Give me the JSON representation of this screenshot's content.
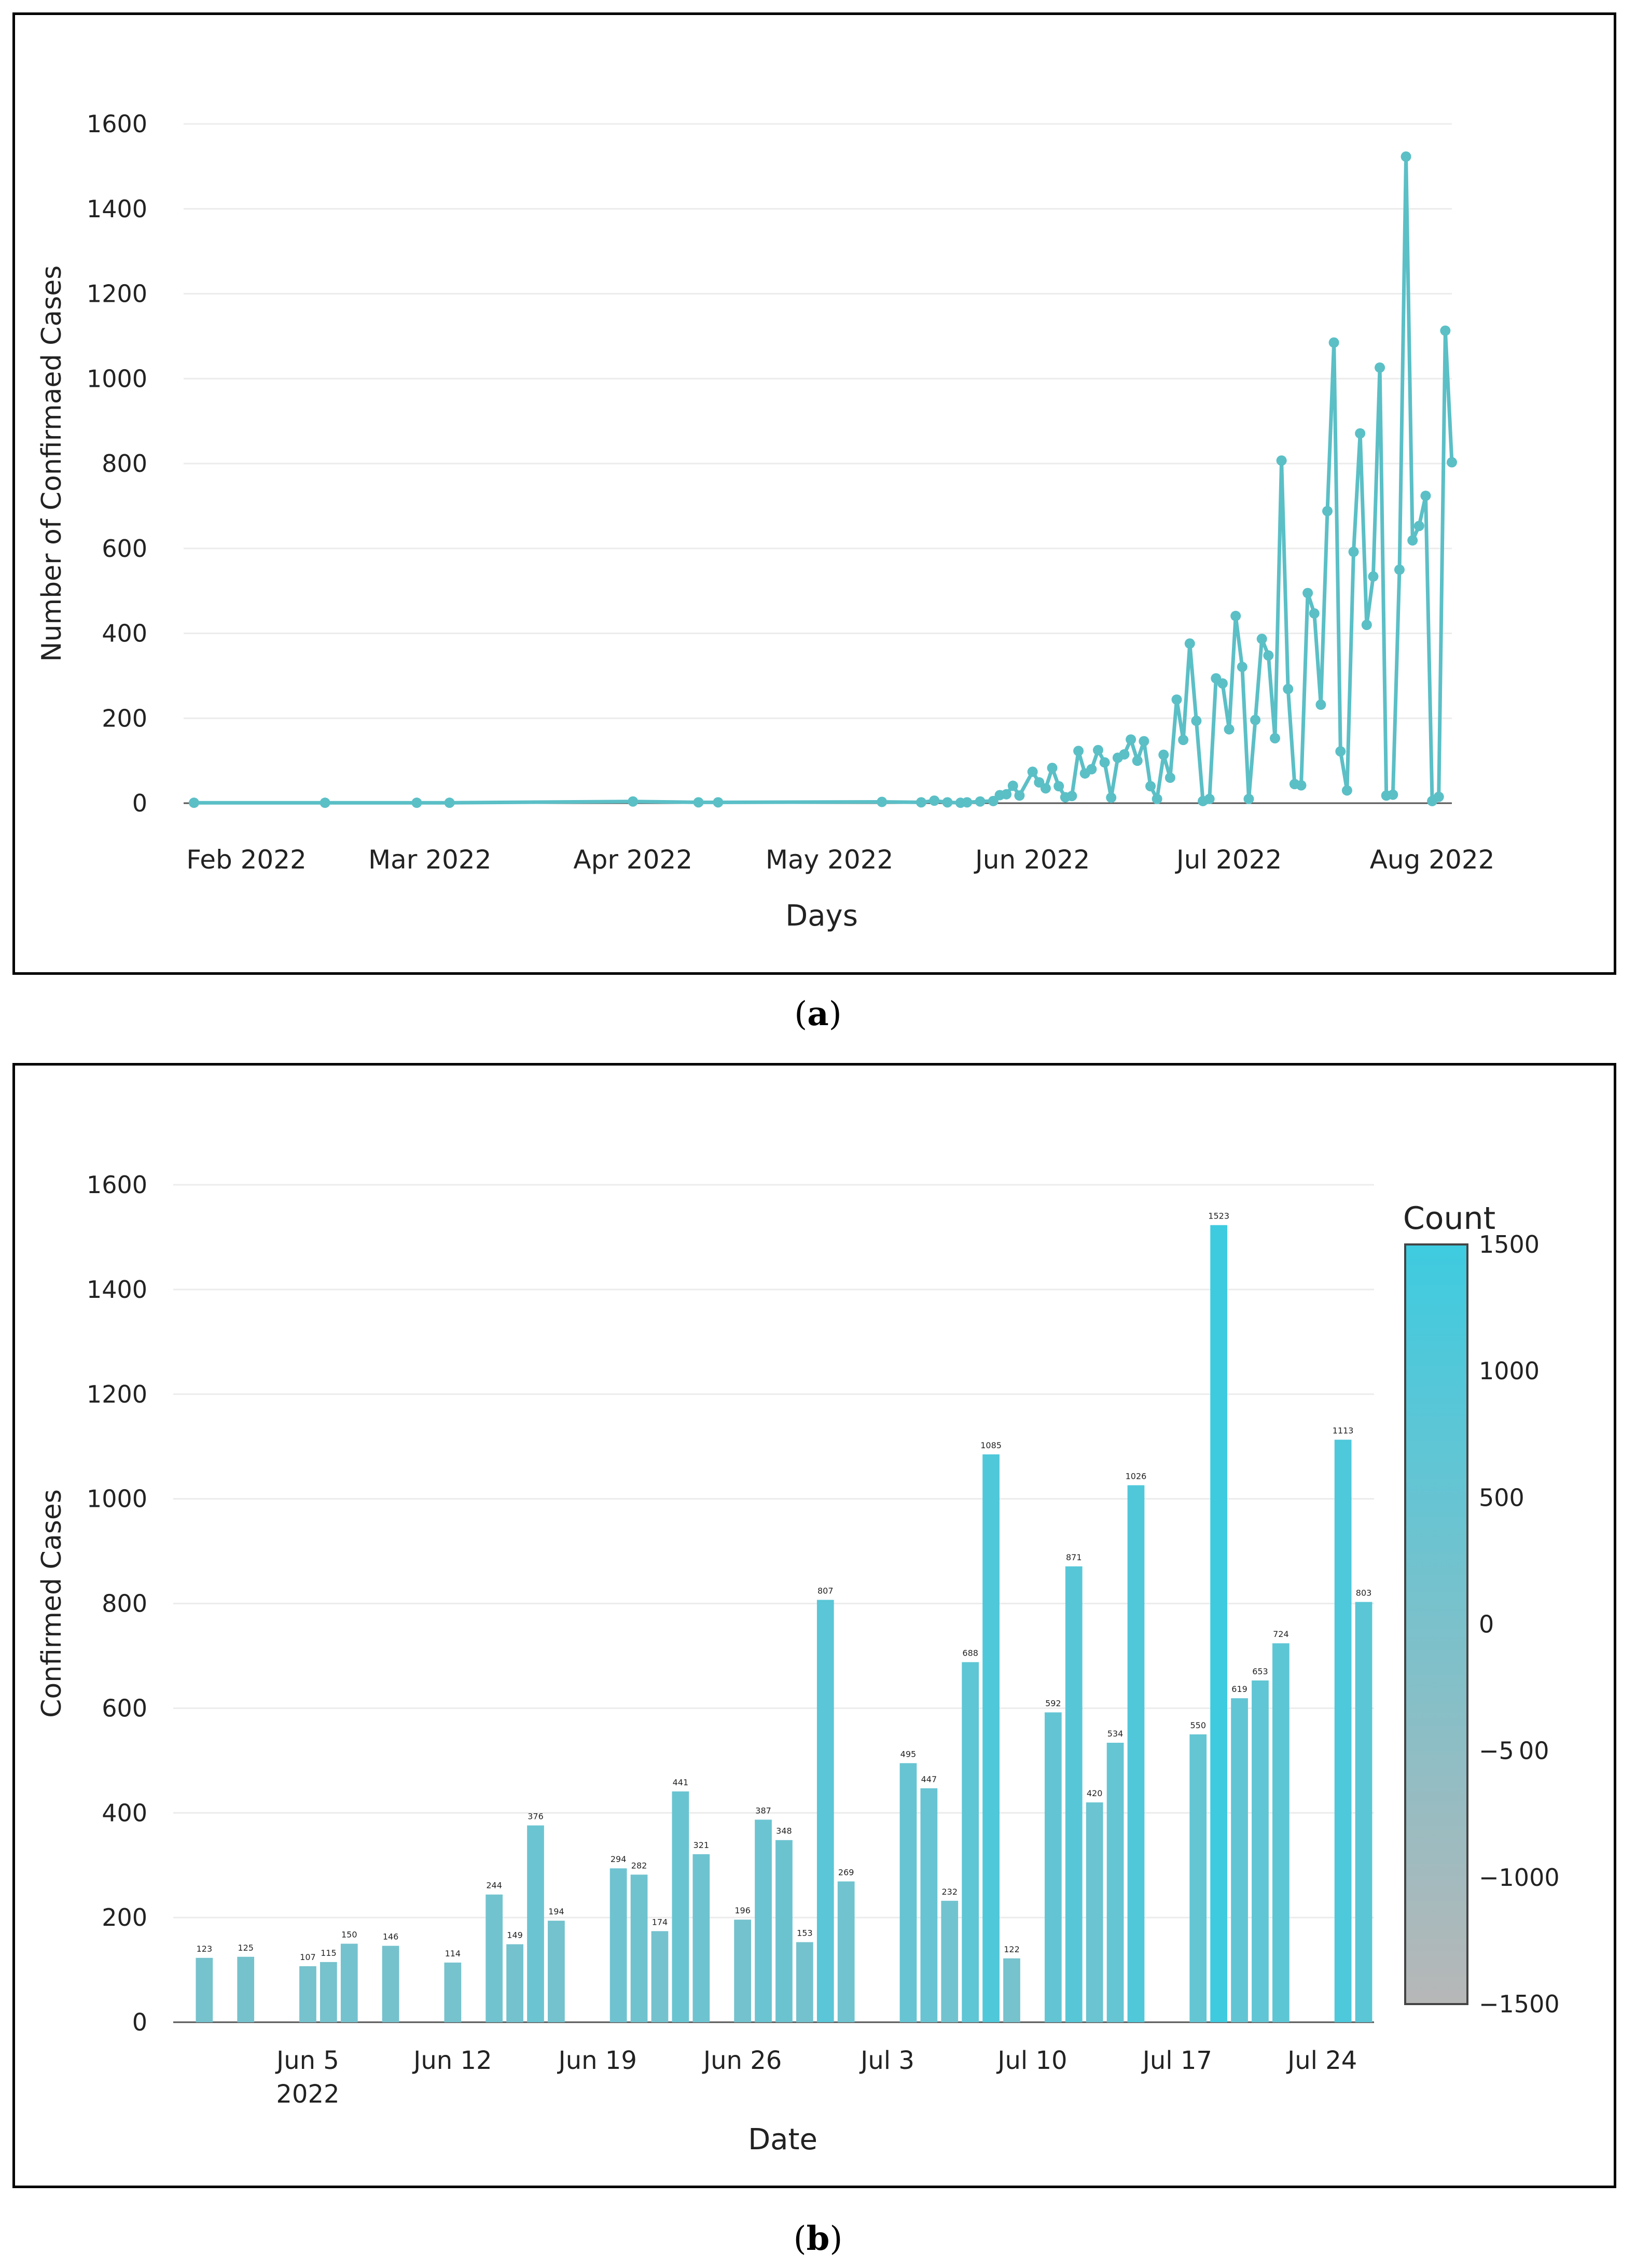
{
  "captions": {
    "a": {
      "open": "(",
      "letter": "a",
      "close": ")"
    },
    "b": {
      "open": "(",
      "letter": "b",
      "close": ")"
    }
  },
  "chart_data": [
    {
      "id": "a",
      "type": "line",
      "title": "",
      "xlabel": "Days",
      "ylabel": "Number of Confirmaed Cases",
      "ylim": [
        0,
        1600
      ],
      "yticks": [
        0,
        200,
        400,
        600,
        800,
        1000,
        1200,
        1400,
        1600
      ],
      "xlim": [
        "2022-01-24",
        "2022-08-04"
      ],
      "xticks": [
        {
          "date": "2022-02-01",
          "label": "Feb 2022"
        },
        {
          "date": "2022-03-01",
          "label": "Mar 2022"
        },
        {
          "date": "2022-04-01",
          "label": "Apr 2022"
        },
        {
          "date": "2022-05-01",
          "label": "May 2022"
        },
        {
          "date": "2022-06-01",
          "label": "Jun 2022"
        },
        {
          "date": "2022-07-01",
          "label": "Jul 2022"
        },
        {
          "date": "2022-08-01",
          "label": "Aug 2022"
        }
      ],
      "grid": true,
      "color": "#5bbfc6",
      "series": [
        {
          "points": [
            [
              "2022-01-24",
              1
            ],
            [
              "2022-02-13",
              1
            ],
            [
              "2022-02-27",
              1
            ],
            [
              "2022-03-04",
              1
            ],
            [
              "2022-04-01",
              4
            ],
            [
              "2022-04-11",
              2
            ],
            [
              "2022-04-14",
              2
            ],
            [
              "2022-05-09",
              3
            ],
            [
              "2022-05-15",
              2
            ],
            [
              "2022-05-17",
              6
            ],
            [
              "2022-05-19",
              2
            ],
            [
              "2022-05-21",
              1
            ],
            [
              "2022-05-22",
              2
            ],
            [
              "2022-05-24",
              4
            ],
            [
              "2022-05-26",
              5
            ],
            [
              "2022-05-27",
              19
            ],
            [
              "2022-05-28",
              21
            ],
            [
              "2022-05-29",
              41
            ],
            [
              "2022-05-30",
              18
            ],
            [
              "2022-06-01",
              74
            ],
            [
              "2022-06-02",
              49
            ],
            [
              "2022-06-03",
              35
            ],
            [
              "2022-06-04",
              83
            ],
            [
              "2022-06-05",
              40
            ],
            [
              "2022-06-06",
              14
            ],
            [
              "2022-06-07",
              17
            ],
            [
              "2022-06-08",
              123
            ],
            [
              "2022-06-09",
              70
            ],
            [
              "2022-06-10",
              80
            ],
            [
              "2022-06-11",
              125
            ],
            [
              "2022-06-12",
              96
            ],
            [
              "2022-06-13",
              13
            ],
            [
              "2022-06-14",
              107
            ],
            [
              "2022-06-15",
              115
            ],
            [
              "2022-06-16",
              150
            ],
            [
              "2022-06-17",
              100
            ],
            [
              "2022-06-18",
              146
            ],
            [
              "2022-06-19",
              40
            ],
            [
              "2022-06-20",
              10
            ],
            [
              "2022-06-21",
              114
            ],
            [
              "2022-06-22",
              60
            ],
            [
              "2022-06-23",
              244
            ],
            [
              "2022-06-24",
              149
            ],
            [
              "2022-06-25",
              376
            ],
            [
              "2022-06-26",
              194
            ],
            [
              "2022-06-27",
              5
            ],
            [
              "2022-06-28",
              10
            ],
            [
              "2022-06-29",
              294
            ],
            [
              "2022-06-30",
              282
            ],
            [
              "2022-07-01",
              174
            ],
            [
              "2022-07-02",
              441
            ],
            [
              "2022-07-03",
              321
            ],
            [
              "2022-07-04",
              10
            ],
            [
              "2022-07-05",
              196
            ],
            [
              "2022-07-06",
              387
            ],
            [
              "2022-07-07",
              348
            ],
            [
              "2022-07-08",
              153
            ],
            [
              "2022-07-09",
              807
            ],
            [
              "2022-07-10",
              269
            ],
            [
              "2022-07-11",
              45
            ],
            [
              "2022-07-12",
              42
            ],
            [
              "2022-07-13",
              495
            ],
            [
              "2022-07-14",
              447
            ],
            [
              "2022-07-15",
              232
            ],
            [
              "2022-07-16",
              688
            ],
            [
              "2022-07-17",
              1085
            ],
            [
              "2022-07-18",
              122
            ],
            [
              "2022-07-19",
              30
            ],
            [
              "2022-07-20",
              592
            ],
            [
              "2022-07-21",
              871
            ],
            [
              "2022-07-22",
              420
            ],
            [
              "2022-07-23",
              534
            ],
            [
              "2022-07-24",
              1026
            ],
            [
              "2022-07-25",
              18
            ],
            [
              "2022-07-26",
              20
            ],
            [
              "2022-07-27",
              550
            ],
            [
              "2022-07-28",
              1523
            ],
            [
              "2022-07-29",
              619
            ],
            [
              "2022-07-30",
              653
            ],
            [
              "2022-07-31",
              724
            ],
            [
              "2022-08-01",
              5
            ],
            [
              "2022-08-02",
              15
            ],
            [
              "2022-08-03",
              1113
            ],
            [
              "2022-08-04",
              803
            ]
          ]
        }
      ]
    },
    {
      "id": "b",
      "type": "bar",
      "title": "",
      "xlabel": "Date",
      "ylabel": "Confirmed Cases",
      "ylim": [
        0,
        1600
      ],
      "yticks": [
        0,
        200,
        400,
        600,
        800,
        1000,
        1200,
        1400,
        1600
      ],
      "xlim": [
        "2022-05-30",
        "2022-07-27"
      ],
      "xticks": [
        {
          "date": "2022-06-05",
          "label": "Jun 5",
          "sublabel": "2022"
        },
        {
          "date": "2022-06-12",
          "label": "Jun 12"
        },
        {
          "date": "2022-06-19",
          "label": "Jun 19"
        },
        {
          "date": "2022-06-26",
          "label": "Jun 26"
        },
        {
          "date": "2022-07-03",
          "label": "Jul 3"
        },
        {
          "date": "2022-07-10",
          "label": "Jul 10"
        },
        {
          "date": "2022-07-17",
          "label": "Jul 17"
        },
        {
          "date": "2022-07-24",
          "label": "Jul 24"
        }
      ],
      "grid": true,
      "bars": [
        [
          "2022-05-31",
          123
        ],
        [
          "2022-06-02",
          125
        ],
        [
          "2022-06-05",
          107
        ],
        [
          "2022-06-06",
          115
        ],
        [
          "2022-06-07",
          150
        ],
        [
          "2022-06-09",
          146
        ],
        [
          "2022-06-12",
          114
        ],
        [
          "2022-06-14",
          244
        ],
        [
          "2022-06-15",
          149
        ],
        [
          "2022-06-16",
          376
        ],
        [
          "2022-06-17",
          194
        ],
        [
          "2022-06-20",
          294
        ],
        [
          "2022-06-21",
          282
        ],
        [
          "2022-06-22",
          174
        ],
        [
          "2022-06-23",
          441
        ],
        [
          "2022-06-24",
          321
        ],
        [
          "2022-06-26",
          196
        ],
        [
          "2022-06-27",
          387
        ],
        [
          "2022-06-28",
          348
        ],
        [
          "2022-06-29",
          153
        ],
        [
          "2022-06-30",
          807
        ],
        [
          "2022-07-01",
          269
        ],
        [
          "2022-07-04",
          495
        ],
        [
          "2022-07-05",
          447
        ],
        [
          "2022-07-06",
          232
        ],
        [
          "2022-07-07",
          688
        ],
        [
          "2022-07-08",
          1085
        ],
        [
          "2022-07-09",
          122
        ],
        [
          "2022-07-11",
          592
        ],
        [
          "2022-07-12",
          871
        ],
        [
          "2022-07-13",
          420
        ],
        [
          "2022-07-14",
          534
        ],
        [
          "2022-07-15",
          1026
        ],
        [
          "2022-07-18",
          550
        ],
        [
          "2022-07-19",
          1523
        ],
        [
          "2022-07-20",
          619
        ],
        [
          "2022-07-21",
          653
        ],
        [
          "2022-07-22",
          724
        ],
        [
          "2022-07-25",
          1113
        ],
        [
          "2022-07-26",
          803
        ]
      ],
      "colorbar": {
        "title": "Count",
        "range": [
          -1500,
          1500
        ],
        "ticks": [
          1500,
          1000,
          500,
          0,
          -500,
          -1000,
          -1500
        ],
        "tick_labels": [
          "1500",
          "1000",
          "500",
          "0",
          "−5 00",
          "−1000",
          "−1500"
        ],
        "color_low": "#b7b7b7",
        "color_high": "#3ecbe0"
      },
      "legend_position": "right"
    }
  ]
}
